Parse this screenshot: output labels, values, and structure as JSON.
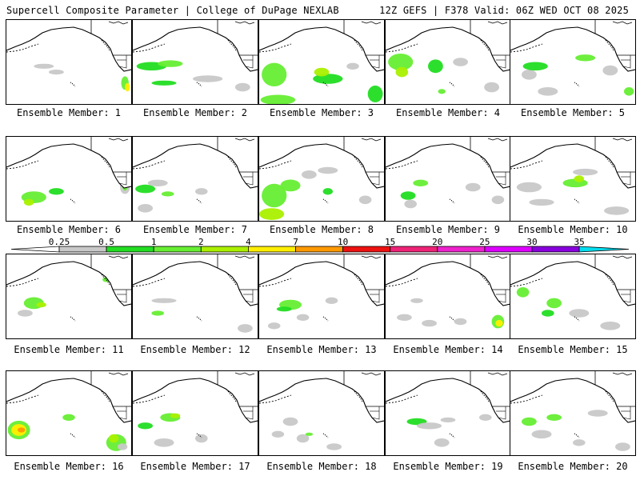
{
  "header": {
    "left": "Supercell Composite Parameter | College of DuPage NEXLAB",
    "right": "12Z GEFS | F378 Valid: 06Z WED OCT 08 2025"
  },
  "legend": {
    "ticks": [
      "0.25",
      "0.5",
      "1",
      "2",
      "4",
      "7",
      "10",
      "15",
      "20",
      "25",
      "30",
      "35"
    ],
    "colors": [
      "#c8c8c8",
      "#22dd22",
      "#66ee33",
      "#aaf000",
      "#ffee00",
      "#ff9900",
      "#ee1111",
      "#ee2277",
      "#ee22cc",
      "#dd00ff",
      "#8800dd",
      "#aa66dd",
      "#00ddee"
    ]
  },
  "panels": [
    {
      "label": "Ensemble Member: 1",
      "blobs": [
        [
          0.3,
          0.55,
          0.08,
          0.03,
          "#c8c8c8"
        ],
        [
          0.4,
          0.62,
          0.06,
          0.03,
          "#c8c8c8"
        ],
        [
          0.95,
          0.75,
          0.03,
          0.08,
          "#66ee33"
        ],
        [
          0.97,
          0.8,
          0.02,
          0.05,
          "#ffee00"
        ]
      ]
    },
    {
      "label": "Ensemble Member: 2",
      "blobs": [
        [
          0.15,
          0.55,
          0.12,
          0.05,
          "#22dd22"
        ],
        [
          0.3,
          0.52,
          0.1,
          0.04,
          "#66ee33"
        ],
        [
          0.25,
          0.75,
          0.1,
          0.03,
          "#22dd22"
        ],
        [
          0.6,
          0.7,
          0.12,
          0.04,
          "#c8c8c8"
        ],
        [
          0.88,
          0.8,
          0.06,
          0.05,
          "#c8c8c8"
        ]
      ]
    },
    {
      "label": "Ensemble Member: 3",
      "blobs": [
        [
          0.12,
          0.65,
          0.1,
          0.14,
          "#66ee33"
        ],
        [
          0.15,
          0.95,
          0.14,
          0.06,
          "#66ee33"
        ],
        [
          0.55,
          0.7,
          0.12,
          0.06,
          "#22dd22"
        ],
        [
          0.5,
          0.62,
          0.06,
          0.05,
          "#aaf000"
        ],
        [
          0.93,
          0.88,
          0.06,
          0.1,
          "#22dd22"
        ],
        [
          0.75,
          0.55,
          0.05,
          0.04,
          "#c8c8c8"
        ]
      ]
    },
    {
      "label": "Ensemble Member: 4",
      "blobs": [
        [
          0.12,
          0.5,
          0.1,
          0.1,
          "#66ee33"
        ],
        [
          0.13,
          0.62,
          0.05,
          0.06,
          "#aaf000"
        ],
        [
          0.4,
          0.55,
          0.06,
          0.08,
          "#22dd22"
        ],
        [
          0.6,
          0.5,
          0.06,
          0.05,
          "#c8c8c8"
        ],
        [
          0.85,
          0.8,
          0.06,
          0.06,
          "#c8c8c8"
        ],
        [
          0.45,
          0.85,
          0.03,
          0.03,
          "#66ee33"
        ]
      ]
    },
    {
      "label": "Ensemble Member: 5",
      "blobs": [
        [
          0.15,
          0.65,
          0.06,
          0.06,
          "#c8c8c8"
        ],
        [
          0.2,
          0.55,
          0.1,
          0.05,
          "#22dd22"
        ],
        [
          0.6,
          0.45,
          0.08,
          0.04,
          "#66ee33"
        ],
        [
          0.3,
          0.85,
          0.08,
          0.05,
          "#c8c8c8"
        ],
        [
          0.95,
          0.85,
          0.04,
          0.05,
          "#66ee33"
        ],
        [
          0.8,
          0.6,
          0.06,
          0.06,
          "#c8c8c8"
        ]
      ]
    },
    {
      "label": "Ensemble Member: 6",
      "blobs": [
        [
          0.22,
          0.72,
          0.1,
          0.07,
          "#66ee33"
        ],
        [
          0.18,
          0.78,
          0.04,
          0.04,
          "#aaf000"
        ],
        [
          0.4,
          0.65,
          0.06,
          0.04,
          "#22dd22"
        ],
        [
          0.95,
          0.6,
          0.04,
          0.08,
          "#c8c8c8"
        ],
        [
          0.95,
          0.6,
          0.02,
          0.04,
          "#66ee33"
        ]
      ]
    },
    {
      "label": "Ensemble Member: 7",
      "blobs": [
        [
          0.1,
          0.62,
          0.08,
          0.05,
          "#22dd22"
        ],
        [
          0.2,
          0.55,
          0.08,
          0.04,
          "#c8c8c8"
        ],
        [
          0.28,
          0.68,
          0.05,
          0.03,
          "#66ee33"
        ],
        [
          0.55,
          0.65,
          0.05,
          0.04,
          "#c8c8c8"
        ],
        [
          0.1,
          0.85,
          0.06,
          0.05,
          "#c8c8c8"
        ]
      ]
    },
    {
      "label": "Ensemble Member: 8",
      "blobs": [
        [
          0.12,
          0.7,
          0.1,
          0.14,
          "#66ee33"
        ],
        [
          0.1,
          0.92,
          0.1,
          0.07,
          "#aaf000"
        ],
        [
          0.25,
          0.58,
          0.08,
          0.07,
          "#66ee33"
        ],
        [
          0.4,
          0.45,
          0.06,
          0.05,
          "#c8c8c8"
        ],
        [
          0.55,
          0.4,
          0.08,
          0.04,
          "#c8c8c8"
        ],
        [
          0.55,
          0.65,
          0.04,
          0.04,
          "#22dd22"
        ],
        [
          0.85,
          0.75,
          0.05,
          0.05,
          "#c8c8c8"
        ]
      ]
    },
    {
      "label": "Ensemble Member: 9",
      "blobs": [
        [
          0.18,
          0.7,
          0.06,
          0.05,
          "#22dd22"
        ],
        [
          0.28,
          0.55,
          0.06,
          0.04,
          "#66ee33"
        ],
        [
          0.2,
          0.8,
          0.05,
          0.05,
          "#c8c8c8"
        ],
        [
          0.7,
          0.6,
          0.06,
          0.05,
          "#c8c8c8"
        ],
        [
          0.9,
          0.75,
          0.05,
          0.05,
          "#c8c8c8"
        ]
      ]
    },
    {
      "label": "Ensemble Member: 10",
      "blobs": [
        [
          0.52,
          0.55,
          0.1,
          0.05,
          "#66ee33"
        ],
        [
          0.55,
          0.5,
          0.04,
          0.04,
          "#aaf000"
        ],
        [
          0.15,
          0.6,
          0.1,
          0.06,
          "#c8c8c8"
        ],
        [
          0.25,
          0.78,
          0.1,
          0.04,
          "#c8c8c8"
        ],
        [
          0.85,
          0.88,
          0.1,
          0.05,
          "#c8c8c8"
        ],
        [
          0.6,
          0.42,
          0.1,
          0.04,
          "#c8c8c8"
        ]
      ]
    },
    {
      "label": "Ensemble Member: 11",
      "blobs": [
        [
          0.22,
          0.58,
          0.08,
          0.07,
          "#66ee33"
        ],
        [
          0.28,
          0.6,
          0.04,
          0.03,
          "#aaf000"
        ],
        [
          0.15,
          0.7,
          0.06,
          0.04,
          "#c8c8c8"
        ],
        [
          0.8,
          0.3,
          0.03,
          0.03,
          "#66ee33"
        ]
      ]
    },
    {
      "label": "Ensemble Member: 12",
      "blobs": [
        [
          0.25,
          0.55,
          0.1,
          0.03,
          "#c8c8c8"
        ],
        [
          0.2,
          0.7,
          0.05,
          0.03,
          "#66ee33"
        ],
        [
          0.9,
          0.88,
          0.06,
          0.05,
          "#c8c8c8"
        ]
      ]
    },
    {
      "label": "Ensemble Member: 13",
      "blobs": [
        [
          0.25,
          0.6,
          0.09,
          0.06,
          "#66ee33"
        ],
        [
          0.2,
          0.65,
          0.06,
          0.03,
          "#22dd22"
        ],
        [
          0.35,
          0.75,
          0.05,
          0.04,
          "#c8c8c8"
        ],
        [
          0.12,
          0.85,
          0.05,
          0.04,
          "#c8c8c8"
        ],
        [
          0.58,
          0.55,
          0.05,
          0.04,
          "#c8c8c8"
        ]
      ]
    },
    {
      "label": "Ensemble Member: 14",
      "blobs": [
        [
          0.9,
          0.8,
          0.05,
          0.08,
          "#66ee33"
        ],
        [
          0.91,
          0.82,
          0.03,
          0.04,
          "#ffee00"
        ],
        [
          0.15,
          0.75,
          0.06,
          0.04,
          "#c8c8c8"
        ],
        [
          0.35,
          0.82,
          0.06,
          0.04,
          "#c8c8c8"
        ],
        [
          0.25,
          0.55,
          0.05,
          0.03,
          "#c8c8c8"
        ],
        [
          0.6,
          0.8,
          0.05,
          0.04,
          "#c8c8c8"
        ]
      ]
    },
    {
      "label": "Ensemble Member: 15",
      "blobs": [
        [
          0.35,
          0.58,
          0.06,
          0.06,
          "#66ee33"
        ],
        [
          0.3,
          0.7,
          0.05,
          0.04,
          "#22dd22"
        ],
        [
          0.1,
          0.45,
          0.05,
          0.06,
          "#66ee33"
        ],
        [
          0.55,
          0.7,
          0.08,
          0.05,
          "#c8c8c8"
        ],
        [
          0.8,
          0.85,
          0.08,
          0.05,
          "#c8c8c8"
        ]
      ]
    },
    {
      "label": "Ensemble Member: 16",
      "blobs": [
        [
          0.1,
          0.7,
          0.09,
          0.11,
          "#66ee33"
        ],
        [
          0.1,
          0.7,
          0.06,
          0.07,
          "#ffee00"
        ],
        [
          0.12,
          0.7,
          0.03,
          0.03,
          "#ff9900"
        ],
        [
          0.5,
          0.55,
          0.05,
          0.04,
          "#66ee33"
        ],
        [
          0.88,
          0.85,
          0.08,
          0.1,
          "#66ee33"
        ],
        [
          0.86,
          0.8,
          0.04,
          0.05,
          "#aaf000"
        ],
        [
          0.93,
          0.9,
          0.04,
          0.04,
          "#c8c8c8"
        ]
      ]
    },
    {
      "label": "Ensemble Member: 17",
      "blobs": [
        [
          0.3,
          0.55,
          0.08,
          0.05,
          "#66ee33"
        ],
        [
          0.34,
          0.53,
          0.04,
          0.03,
          "#aaf000"
        ],
        [
          0.1,
          0.65,
          0.06,
          0.04,
          "#22dd22"
        ],
        [
          0.25,
          0.85,
          0.08,
          0.05,
          "#c8c8c8"
        ],
        [
          0.55,
          0.8,
          0.05,
          0.05,
          "#c8c8c8"
        ]
      ]
    },
    {
      "label": "Ensemble Member: 18",
      "blobs": [
        [
          0.25,
          0.6,
          0.06,
          0.05,
          "#c8c8c8"
        ],
        [
          0.15,
          0.75,
          0.05,
          0.04,
          "#c8c8c8"
        ],
        [
          0.35,
          0.8,
          0.05,
          0.05,
          "#c8c8c8"
        ],
        [
          0.6,
          0.9,
          0.06,
          0.04,
          "#c8c8c8"
        ],
        [
          0.4,
          0.75,
          0.03,
          0.02,
          "#66ee33"
        ]
      ]
    },
    {
      "label": "Ensemble Member: 19",
      "blobs": [
        [
          0.25,
          0.6,
          0.08,
          0.04,
          "#22dd22"
        ],
        [
          0.35,
          0.65,
          0.1,
          0.04,
          "#c8c8c8"
        ],
        [
          0.5,
          0.58,
          0.06,
          0.03,
          "#c8c8c8"
        ],
        [
          0.45,
          0.85,
          0.06,
          0.05,
          "#c8c8c8"
        ],
        [
          0.8,
          0.55,
          0.05,
          0.04,
          "#c8c8c8"
        ]
      ]
    },
    {
      "label": "Ensemble Member: 20",
      "blobs": [
        [
          0.15,
          0.6,
          0.06,
          0.05,
          "#66ee33"
        ],
        [
          0.35,
          0.55,
          0.06,
          0.04,
          "#66ee33"
        ],
        [
          0.25,
          0.75,
          0.08,
          0.05,
          "#c8c8c8"
        ],
        [
          0.7,
          0.5,
          0.08,
          0.04,
          "#c8c8c8"
        ],
        [
          0.9,
          0.9,
          0.06,
          0.05,
          "#c8c8c8"
        ],
        [
          0.55,
          0.85,
          0.05,
          0.04,
          "#c8c8c8"
        ]
      ]
    }
  ]
}
